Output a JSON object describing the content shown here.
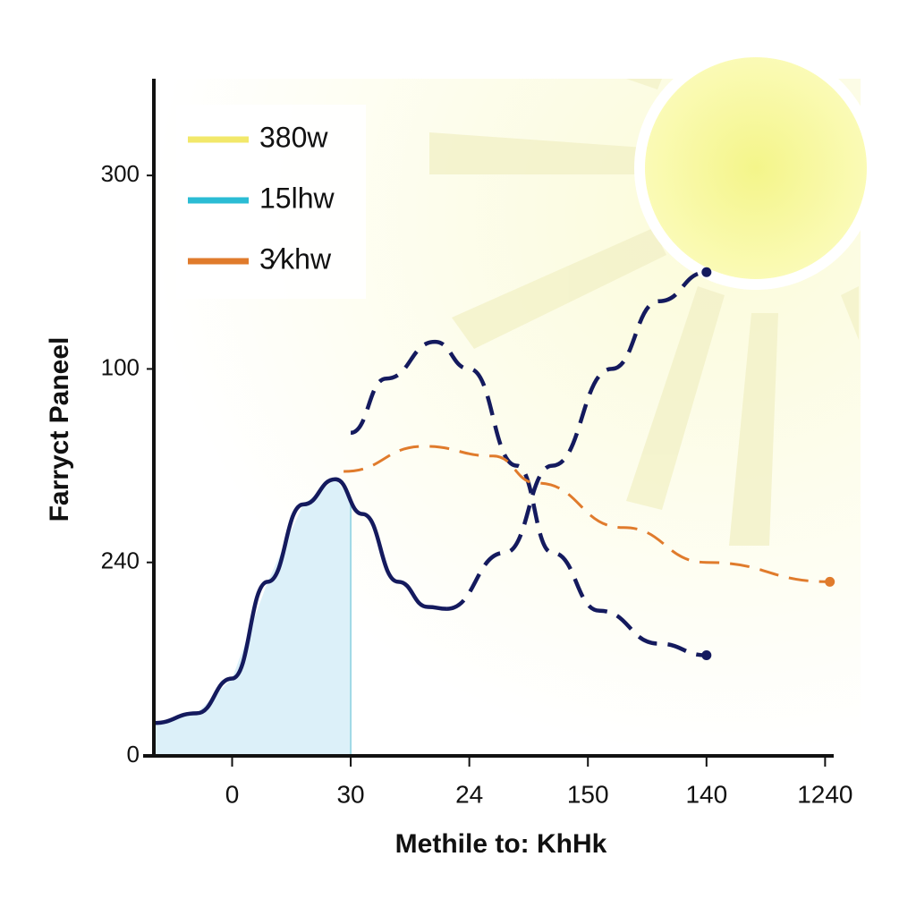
{
  "chart_data": {
    "type": "line",
    "y_label": "Farryct Paneel",
    "x_label": "Methile to: KhHk",
    "categories": [
      "0",
      "30",
      "24",
      "150",
      "140",
      "1240"
    ],
    "xlim": [
      -0.66,
      5.05
    ],
    "ylim": [
      0,
      3.5
    ],
    "yticks": [
      {
        "value": 0,
        "label": "0"
      },
      {
        "value": 1,
        "label": "240"
      },
      {
        "value": 2,
        "label": "100"
      },
      {
        "value": 3,
        "label": "300"
      }
    ],
    "legend": [
      {
        "label": "380w",
        "color": "#f2e86a"
      },
      {
        "label": "15lhw",
        "color": "#2bbcd4"
      },
      {
        "label": "3⁄khw",
        "color": "#e07b2c"
      }
    ],
    "series": [
      {
        "color": "#141a5e",
        "style": "solid",
        "fill": "#d8eef8",
        "x": [
          -0.66,
          -0.3,
          0,
          0.3,
          0.6,
          0.87,
          1.1,
          1.4,
          1.65,
          1.81
        ],
        "values": [
          0.17,
          0.22,
          0.4,
          0.9,
          1.3,
          1.43,
          1.25,
          0.9,
          0.77,
          0.76
        ]
      },
      {
        "color": "#141a5e",
        "style": "dashed",
        "endpoint": true,
        "x": [
          1.81,
          2.3,
          2.7,
          3.2,
          3.6,
          4.0
        ],
        "values": [
          0.76,
          1.05,
          1.5,
          2.0,
          2.35,
          2.5
        ]
      },
      {
        "color": "#141a5e",
        "style": "dashed",
        "endpoint": true,
        "x": [
          1.0,
          1.3,
          1.71,
          2.0,
          2.4,
          2.7,
          3.1,
          3.6,
          4.0
        ],
        "values": [
          1.67,
          1.95,
          2.14,
          2.0,
          1.5,
          1.05,
          0.75,
          0.58,
          0.52
        ]
      },
      {
        "color": "#e07b2c",
        "style": "dashed",
        "endpoint": true,
        "x": [
          0.94,
          1.62,
          2.2,
          2.57,
          3.3,
          4.0,
          5.04
        ],
        "values": [
          1.47,
          1.6,
          1.55,
          1.41,
          1.18,
          1.0,
          0.9
        ]
      }
    ]
  }
}
